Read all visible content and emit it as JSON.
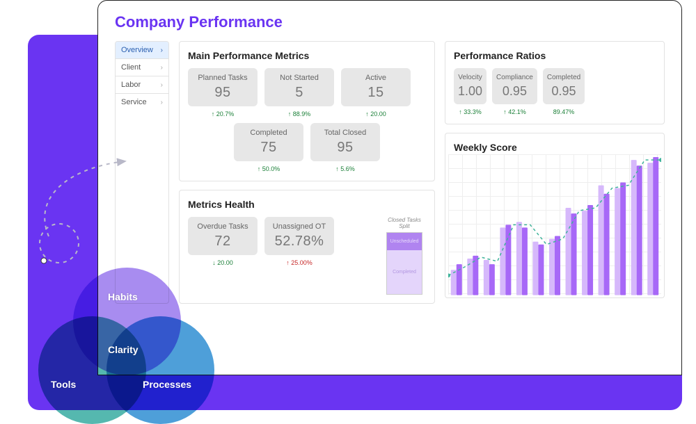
{
  "dashboard": {
    "title": "Company Performance",
    "bg_color": "#6a34f2"
  },
  "sidebar": {
    "items": [
      {
        "label": "Overview",
        "active": true
      },
      {
        "label": "Client",
        "active": false
      },
      {
        "label": "Labor",
        "active": false
      },
      {
        "label": "Service",
        "active": false
      }
    ]
  },
  "metrics": {
    "title": "Main Performance Metrics",
    "row1": [
      {
        "label": "Planned Tasks",
        "value": "95",
        "delta": "↑ 20.7%",
        "delta_dir": "up"
      },
      {
        "label": "Not Started",
        "value": "5",
        "delta": "↑ 88.9%",
        "delta_dir": "up"
      },
      {
        "label": "Active",
        "value": "15",
        "delta": "↑ 20.00",
        "delta_dir": "up"
      }
    ],
    "row2": [
      {
        "label": "Completed",
        "value": "75",
        "delta": "↑ 50.0%",
        "delta_dir": "up"
      },
      {
        "label": "Total Closed",
        "value": "95",
        "delta": "↑ 5.6%",
        "delta_dir": "up"
      }
    ]
  },
  "health": {
    "title": "Metrics Health",
    "kpis": [
      {
        "label": "Overdue Tasks",
        "value": "72",
        "delta": "↓ 20.00",
        "delta_dir": "up"
      },
      {
        "label": "Unassigned OT",
        "value": "52.78%",
        "delta": "↑ 25.00%",
        "delta_dir": "down"
      }
    ],
    "split": {
      "title": "Closed Tasks Split",
      "top_label": "Unscheduled",
      "bot_label": "Completed",
      "top_pct": 28,
      "top_color": "#b084f0",
      "bot_color": "#e4d5fb"
    }
  },
  "ratios": {
    "title": "Performance Ratios",
    "items": [
      {
        "label": "Velocity",
        "value": "1.00",
        "delta": "↑ 33.3%"
      },
      {
        "label": "Compliance",
        "value": "0.95",
        "delta": "↑ 42.1%"
      },
      {
        "label": "Completed",
        "value": "0.95",
        "delta": "89.47%"
      }
    ]
  },
  "weekly": {
    "title": "Weekly Score",
    "type": "bar+line",
    "colors": {
      "bar_a": "#d6b8fb",
      "bar_b": "#a768f7",
      "line": "#3fb39a",
      "grid": "#eeeeee"
    },
    "ylim": [
      0,
      100
    ],
    "series_a": [
      18,
      26,
      25,
      48,
      52,
      38,
      40,
      62,
      60,
      78,
      76,
      96,
      94
    ],
    "series_b": [
      22,
      28,
      22,
      50,
      48,
      36,
      42,
      58,
      64,
      72,
      80,
      92,
      98
    ],
    "line_pts": [
      14,
      20,
      27,
      24,
      50,
      50,
      36,
      40,
      60,
      62,
      76,
      78,
      96,
      96
    ]
  },
  "venn": {
    "labels": {
      "top": "Habits",
      "left": "Tools",
      "right": "Processes",
      "center": "Clarity"
    },
    "colors": {
      "c1": "#a88cf0",
      "c2": "#55b8af",
      "c3": "#4e9fd9"
    }
  }
}
